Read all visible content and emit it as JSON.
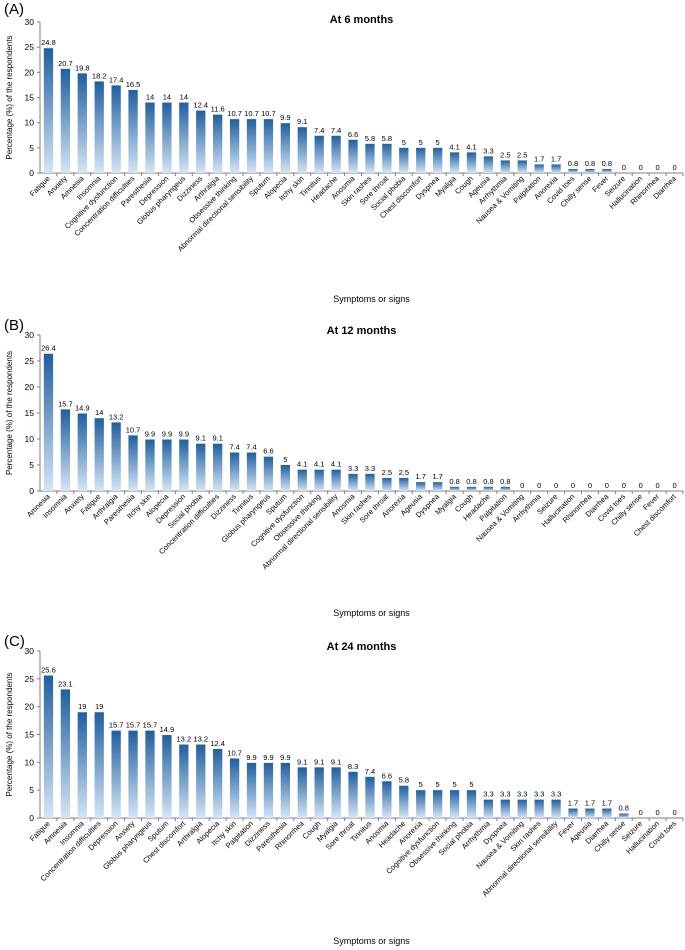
{
  "bar_gradient": {
    "top": "#1f5fa0",
    "bottom": "#d5e6f6"
  },
  "chart_data": [
    {
      "type": "bar",
      "panel_label": "(A)",
      "title": "At 6 months",
      "xlabel": "Symptoms or signs",
      "ylabel": "Percentage (%) of the respondents",
      "ylim": [
        0,
        30
      ],
      "yticks": [
        0,
        5,
        10,
        15,
        20,
        25,
        30
      ],
      "grid": false,
      "categories": [
        "Fatigue",
        "Anxiety",
        "Amnesia",
        "Insomnia",
        "Cognitive dysfunction",
        "Concentration difficulties",
        "Paresthesia",
        "Depression",
        "Globus pharyngeus",
        "Dizziness",
        "Arthralgia",
        "Obsessive thinking",
        "Abnormal directional sensibility",
        "Sputum",
        "Alopecia",
        "Itchy skin",
        "Tinnitus",
        "Headache",
        "Anosmia",
        "Skin rashes",
        "Sore throat",
        "Social phobia",
        "Chest discomfort",
        "Dyspnea",
        "Myalgia",
        "Cough",
        "Ageusia",
        "Arrhythmia",
        "Nausea & Vomiting",
        "Palpitation",
        "Anorexia",
        "Covid toes",
        "Chilly sense",
        "Fever",
        "Seizure",
        "Hallucination",
        "Rhinorrhea",
        "Diarrhea"
      ],
      "values": [
        24.8,
        20.7,
        19.8,
        18.2,
        17.4,
        16.5,
        14,
        14,
        14,
        12.4,
        11.6,
        10.7,
        10.7,
        10.7,
        9.9,
        9.1,
        7.4,
        7.4,
        6.6,
        5.8,
        5.8,
        5,
        5,
        5,
        4.1,
        4.1,
        3.3,
        2.5,
        2.5,
        1.7,
        1.7,
        0.8,
        0.8,
        0.8,
        0,
        0,
        0,
        0
      ]
    },
    {
      "type": "bar",
      "panel_label": "(B)",
      "title": "At 12 months",
      "xlabel": "Symptoms or signs",
      "ylabel": "Percentage (%) of the respondents",
      "ylim": [
        0,
        30
      ],
      "yticks": [
        0,
        5,
        10,
        15,
        20,
        25,
        30
      ],
      "grid": false,
      "categories": [
        "Amnesia",
        "Insomnia",
        "Anxiety",
        "Fatigue",
        "Arthralgia",
        "Paresthesia",
        "Itchy skin",
        "Alopecia",
        "Depression",
        "Social phobia",
        "Concentration difficulties",
        "Dizziness",
        "Tinnitus",
        "Globus pharyngeus",
        "Sputum",
        "Cognitive dysfunction",
        "Obsessive thinking",
        "Abnormal directional sensibility",
        "Anosmia",
        "Skin rashes",
        "Sore throat",
        "Anorexia",
        "Ageusia",
        "Dyspnea",
        "Myalgia",
        "Cough",
        "Headache",
        "Palpitation",
        "Nausea & Vomiting",
        "Arrhythmia",
        "Seizure",
        "Hallucination",
        "Rhinorrhea",
        "Diarrhea",
        "Covid toes",
        "Chilly sense",
        "Fever",
        "Chest discomfort"
      ],
      "values": [
        26.4,
        15.7,
        14.9,
        14,
        13.2,
        10.7,
        9.9,
        9.9,
        9.9,
        9.1,
        9.1,
        7.4,
        7.4,
        6.6,
        5,
        4.1,
        4.1,
        4.1,
        3.3,
        3.3,
        2.5,
        2.5,
        1.7,
        1.7,
        0.8,
        0.8,
        0.8,
        0.8,
        0,
        0,
        0,
        0,
        0,
        0,
        0,
        0,
        0,
        0
      ]
    },
    {
      "type": "bar",
      "panel_label": "(C)",
      "title": "At 24 months",
      "xlabel": "Symptoms or signs",
      "ylabel": "Percentage (%) of the respondents",
      "ylim": [
        0,
        30
      ],
      "yticks": [
        0,
        5,
        10,
        15,
        20,
        25,
        30
      ],
      "grid": false,
      "categories": [
        "Fatigue",
        "Amnesia",
        "Insomnia",
        "Concentration difficulties",
        "Depression",
        "Anxiety",
        "Globus pharyngeus",
        "Sputum",
        "Chest discomfort",
        "Arthralgia",
        "Alopecia",
        "Itchy skin",
        "Palpitation",
        "Dizziness",
        "Paresthesia",
        "Rhinorrhea",
        "Cough",
        "Myalgia",
        "Sore throat",
        "Tinnitus",
        "Anosmia",
        "Headache",
        "Anorexia",
        "Cognitive dysfunction",
        "Obsessive thinking",
        "Social phobia",
        "Arrhythmia",
        "Dyspnea",
        "Nausea & Vomiting",
        "Skin rashes",
        "Abnormal directional sensibility",
        "Fever",
        "Ageusia",
        "Diarrhea",
        "Chilly sense",
        "Seizure",
        "Hallucination",
        "Covid toes"
      ],
      "values": [
        25.6,
        23.1,
        19,
        19,
        15.7,
        15.7,
        15.7,
        14.9,
        13.2,
        13.2,
        12.4,
        10.7,
        9.9,
        9.9,
        9.9,
        9.1,
        9.1,
        9.1,
        8.3,
        7.4,
        6.6,
        5.8,
        5,
        5,
        5,
        5,
        3.3,
        3.3,
        3.3,
        3.3,
        3.3,
        1.7,
        1.7,
        1.7,
        0.8,
        0,
        0,
        0
      ]
    }
  ]
}
